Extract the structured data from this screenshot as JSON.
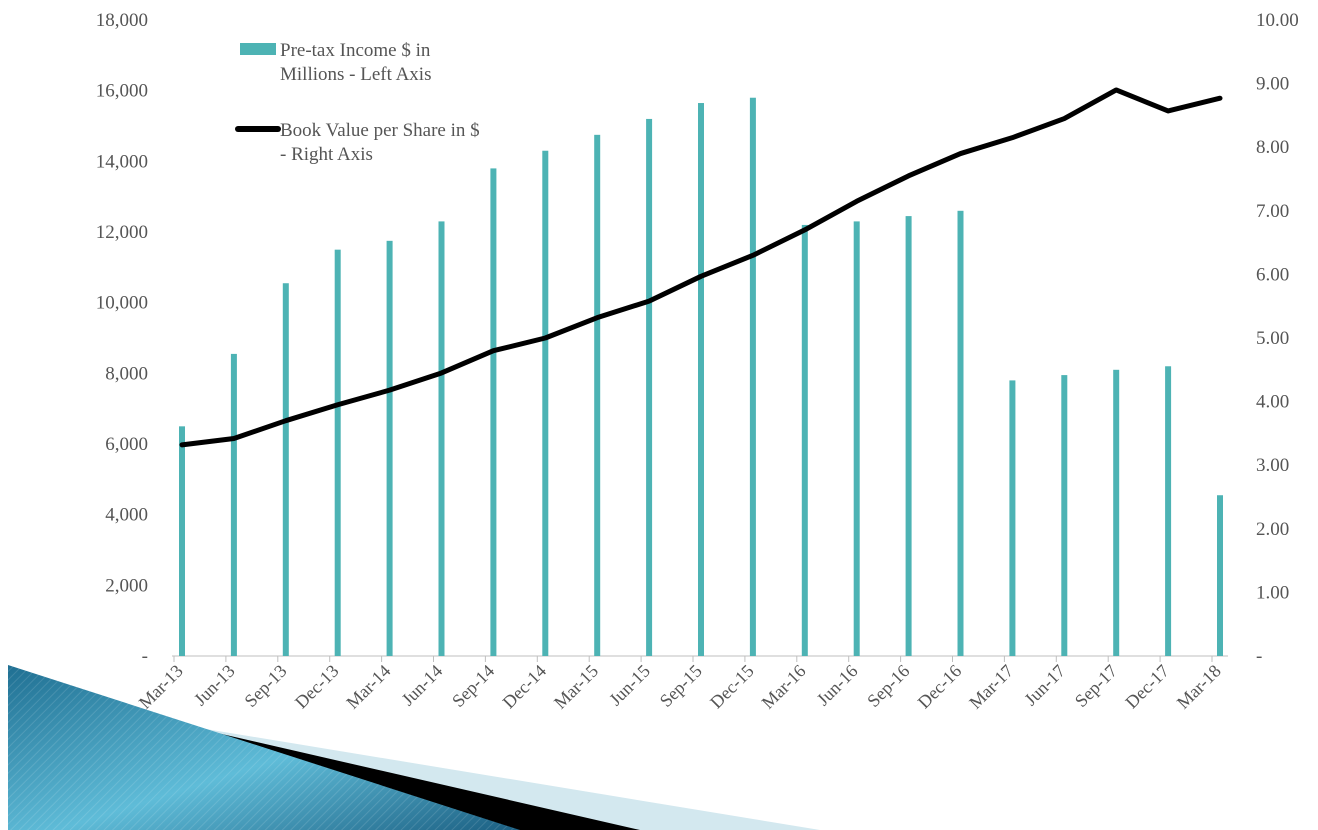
{
  "chart_data": {
    "type": "bar",
    "categories": [
      "Mar-13",
      "Jun-13",
      "Sep-13",
      "Dec-13",
      "Mar-14",
      "Jun-14",
      "Sep-14",
      "Dec-14",
      "Mar-15",
      "Jun-15",
      "Sep-15",
      "Dec-15",
      "Mar-16",
      "Jun-16",
      "Sep-16",
      "Dec-16",
      "Mar-17",
      "Jun-17",
      "Sep-17",
      "Dec-17",
      "Mar-18"
    ],
    "series": [
      {
        "name": "Pre-tax Income  $ in Millions - Left Axis",
        "type": "bar",
        "axis": "left",
        "color": "#4db3b4",
        "values": [
          6500,
          8550,
          10550,
          11500,
          11750,
          12300,
          13800,
          14300,
          14750,
          15200,
          15650,
          15800,
          12200,
          12300,
          12450,
          12600,
          7800,
          7950,
          8100,
          8200,
          4550
        ]
      },
      {
        "name": "Book Value per Share in $ - Right Axis",
        "type": "line",
        "axis": "right",
        "color": "#000000",
        "values": [
          3.32,
          3.42,
          3.7,
          3.95,
          4.18,
          4.45,
          4.8,
          5.0,
          5.32,
          5.58,
          5.97,
          6.3,
          6.7,
          7.15,
          7.55,
          7.9,
          8.15,
          8.45,
          8.9,
          8.57,
          8.77
        ]
      }
    ],
    "y_left": {
      "min": 0,
      "max": 18000,
      "ticks": [
        "-",
        "2,000",
        "4,000",
        "6,000",
        "8,000",
        "10,000",
        "12,000",
        "14,000",
        "16,000",
        "18,000"
      ]
    },
    "y_right": {
      "min": 0,
      "max": 10,
      "ticks": [
        "-",
        "1.00",
        "2.00",
        "3.00",
        "4.00",
        "5.00",
        "6.00",
        "7.00",
        "8.00",
        "9.00",
        "10.00"
      ]
    },
    "legend": [
      {
        "lines": [
          "Pre-tax Income  $ in",
          "Millions - Left Axis"
        ],
        "kind": "bar"
      },
      {
        "lines": [
          "Book Value per Share in $",
          "- Right Axis"
        ],
        "kind": "line"
      }
    ],
    "legend_position": "top-left",
    "grid": false
  }
}
